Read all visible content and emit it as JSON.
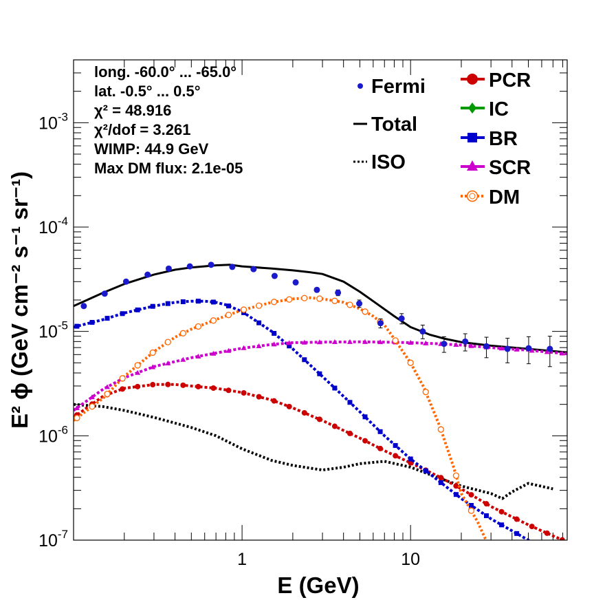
{
  "chart_data": {
    "type": "line",
    "xlabel": "E (GeV)",
    "ylabel": "E² ϕ (GeV cm⁻² s⁻¹ sr⁻¹)",
    "xscale": "log",
    "yscale": "log",
    "xlim": [
      0.1,
      85
    ],
    "ylim": [
      1e-07,
      0.004
    ],
    "x_tick_labels": [
      {
        "value": 1,
        "label": "1"
      },
      {
        "value": 10,
        "label": "10"
      }
    ],
    "y_tick_labels": [
      {
        "value": 1e-07,
        "base": "10",
        "exp": "-7"
      },
      {
        "value": 1e-06,
        "base": "10",
        "exp": "-6"
      },
      {
        "value": 1e-05,
        "base": "10",
        "exp": "-5"
      },
      {
        "value": 0.0001,
        "base": "10",
        "exp": "-4"
      },
      {
        "value": 0.001,
        "base": "10",
        "exp": "-3"
      }
    ],
    "info_lines": [
      "long. -60.0° ... -65.0°",
      "lat. -0.5° ... 0.5°",
      "χ² = 48.916",
      "χ²/dof = 3.261",
      "WIMP: 44.9 GeV",
      "Max DM flux: 2.1e-05"
    ],
    "legend": [
      {
        "label": "Fermi",
        "color": "#1a1acc",
        "style": "point"
      },
      {
        "label": "Total",
        "color": "#000000",
        "style": "line"
      },
      {
        "label": "ISO",
        "color": "#000000",
        "style": "dotted"
      },
      {
        "label": "PCR",
        "color": "#cc0000",
        "style": "circle"
      },
      {
        "label": "IC",
        "color": "#009900",
        "style": "diamond"
      },
      {
        "label": "BR",
        "color": "#0000cc",
        "style": "square"
      },
      {
        "label": "SCR",
        "color": "#cc00cc",
        "style": "triangle"
      },
      {
        "label": "DM",
        "color": "#ff6600",
        "style": "open-circle"
      }
    ],
    "fermi_points": [
      {
        "x": 0.115,
        "y": 1.75e-05,
        "err": 4e-07
      },
      {
        "x": 0.153,
        "y": 2.3e-05,
        "err": 5e-07
      },
      {
        "x": 0.205,
        "y": 3e-05,
        "err": 6e-07
      },
      {
        "x": 0.275,
        "y": 3.5e-05,
        "err": 7e-07
      },
      {
        "x": 0.367,
        "y": 4e-05,
        "err": 8e-07
      },
      {
        "x": 0.49,
        "y": 4.2e-05,
        "err": 8e-07
      },
      {
        "x": 0.655,
        "y": 4.35e-05,
        "err": 9e-07
      },
      {
        "x": 0.875,
        "y": 4.15e-05,
        "err": 9e-07
      },
      {
        "x": 1.17,
        "y": 3.95e-05,
        "err": 1e-06
      },
      {
        "x": 1.56,
        "y": 3.4e-05,
        "err": 1e-06
      },
      {
        "x": 2.08,
        "y": 2.95e-05,
        "err": 1.2e-06
      },
      {
        "x": 2.78,
        "y": 2.5e-05,
        "err": 1.2e-06
      },
      {
        "x": 3.71,
        "y": 2.35e-05,
        "err": 1.5e-06
      },
      {
        "x": 4.96,
        "y": 1.85e-05,
        "err": 1.5e-06
      },
      {
        "x": 6.63,
        "y": 1.2e-05,
        "err": 1.2e-06
      },
      {
        "x": 8.85,
        "y": 1.33e-05,
        "err": 1.5e-06
      },
      {
        "x": 11.8,
        "y": 1e-05,
        "err": 1.5e-06
      },
      {
        "x": 15.8,
        "y": 7.6e-06,
        "err": 1.3e-06
      },
      {
        "x": 21.1,
        "y": 8e-06,
        "err": 1.5e-06
      },
      {
        "x": 28.2,
        "y": 7.2e-06,
        "err": 1.6e-06
      },
      {
        "x": 37.6,
        "y": 6.8e-06,
        "err": 1.8e-06
      },
      {
        "x": 50.2,
        "y": 6.9e-06,
        "err": 2e-06
      },
      {
        "x": 67.1,
        "y": 6.8e-06,
        "err": 2.2e-06
      }
    ],
    "series": [
      {
        "name": "Total",
        "color": "#000000",
        "dash": "none",
        "marker": "none",
        "x": [
          0.1,
          0.15,
          0.2,
          0.3,
          0.4,
          0.5,
          0.7,
          0.85,
          1.0,
          1.5,
          2.0,
          2.5,
          3.0,
          4.0,
          5.0,
          6.0,
          8.0,
          10.0,
          13.0,
          16.0,
          20.0,
          30.0,
          50.0,
          85.0
        ],
        "y": [
          1.75e-05,
          2.35e-05,
          2.85e-05,
          3.5e-05,
          3.9e-05,
          4.1e-05,
          4.3e-05,
          4.35e-05,
          4.2e-05,
          4e-05,
          3.85e-05,
          3.7e-05,
          3.55e-05,
          3e-05,
          2.4e-05,
          1.95e-05,
          1.4e-05,
          1.1e-05,
          9.3e-06,
          8.5e-06,
          7.9e-06,
          7.3e-06,
          6.8e-06,
          6.3e-06
        ]
      },
      {
        "name": "ISO",
        "color": "#000000",
        "dash": "3,3",
        "marker": "none",
        "x": [
          0.1,
          0.15,
          0.2,
          0.3,
          0.5,
          0.7,
          1.0,
          1.5,
          2.0,
          3.0,
          4.0,
          5.0,
          7.0,
          10.0,
          15.0,
          20.0,
          30.0,
          35.0,
          40.0,
          50.0,
          70.0
        ],
        "y": [
          2e-06,
          1.9e-06,
          1.75e-06,
          1.5e-06,
          1.2e-06,
          1e-06,
          7.5e-07,
          5.8e-07,
          5.2e-07,
          4.7e-07,
          5e-07,
          5.4e-07,
          5.7e-07,
          5e-07,
          3.9e-07,
          3.3e-07,
          2.8e-07,
          2.5e-07,
          2.9e-07,
          3.5e-07,
          3.1e-07
        ]
      },
      {
        "name": "PCR",
        "color": "#cc0000",
        "dash": "4,3",
        "marker": "circle",
        "x": [
          0.1,
          0.15,
          0.2,
          0.3,
          0.4,
          0.5,
          0.7,
          1.0,
          1.5,
          2.0,
          3.0,
          5.0,
          7.0,
          10.0,
          15.0,
          20.0,
          30.0,
          50.0,
          80.0
        ],
        "y": [
          1.5e-06,
          2.4e-06,
          2.85e-06,
          3.1e-06,
          3.1e-06,
          3e-06,
          2.85e-06,
          2.6e-06,
          2.2e-06,
          1.85e-06,
          1.4e-06,
          9.5e-07,
          7.2e-07,
          5.5e-07,
          4e-07,
          3.1e-07,
          2.1e-07,
          1.4e-07,
          1e-07
        ]
      },
      {
        "name": "BR",
        "color": "#0000cc",
        "dash": "4,3",
        "marker": "square",
        "x": [
          0.1,
          0.15,
          0.2,
          0.3,
          0.4,
          0.5,
          0.6,
          0.7,
          0.8,
          1.0,
          1.5,
          2.0,
          3.0,
          5.0,
          7.0,
          10.0,
          15.0,
          20.0,
          30.0,
          50.0,
          60.0
        ],
        "y": [
          1.1e-05,
          1.3e-05,
          1.5e-05,
          1.75e-05,
          1.9e-05,
          1.95e-05,
          1.95e-05,
          1.9e-05,
          1.8e-05,
          1.55e-05,
          1e-05,
          6.8e-06,
          3.7e-06,
          1.7e-06,
          1e-06,
          6e-07,
          3.6e-07,
          2.5e-07,
          1.6e-07,
          1e-07,
          9e-08
        ]
      },
      {
        "name": "SCR",
        "color": "#cc00cc",
        "dash": "4,3",
        "marker": "triangle",
        "x": [
          0.1,
          0.15,
          0.2,
          0.3,
          0.5,
          0.7,
          1.0,
          1.5,
          2.0,
          3.0,
          5.0,
          7.0,
          10.0,
          15.0,
          20.0,
          30.0,
          50.0,
          85.0
        ],
        "y": [
          1.75e-06,
          2.8e-06,
          3.6e-06,
          4.6e-06,
          5.6e-06,
          6.2e-06,
          6.9e-06,
          7.5e-06,
          7.8e-06,
          7.9e-06,
          7.95e-06,
          7.9e-06,
          7.8e-06,
          7.6e-06,
          7.4e-06,
          7e-06,
          6.6e-06,
          6.1e-06
        ]
      },
      {
        "name": "DM",
        "color": "#ff6600",
        "dash": "3,3",
        "marker": "open-circle",
        "x": [
          0.1,
          0.15,
          0.2,
          0.3,
          0.4,
          0.5,
          0.7,
          1.0,
          1.5,
          2.0,
          2.5,
          3.0,
          4.0,
          5.0,
          6.0,
          7.0,
          8.0,
          10.0,
          12.0,
          15.0,
          18.0,
          20.0,
          25.0,
          28.0
        ],
        "y": [
          1.4e-06,
          2.3e-06,
          3.7e-06,
          6.4e-06,
          8.8e-06,
          1.05e-05,
          1.3e-05,
          1.6e-05,
          1.9e-05,
          2.05e-05,
          2.1e-05,
          2.05e-05,
          1.9e-05,
          1.65e-05,
          1.4e-05,
          1.15e-05,
          8.5e-06,
          5e-06,
          2.9e-06,
          1.2e-06,
          5e-07,
          2.8e-07,
          1.5e-07,
          1e-07
        ]
      }
    ]
  }
}
